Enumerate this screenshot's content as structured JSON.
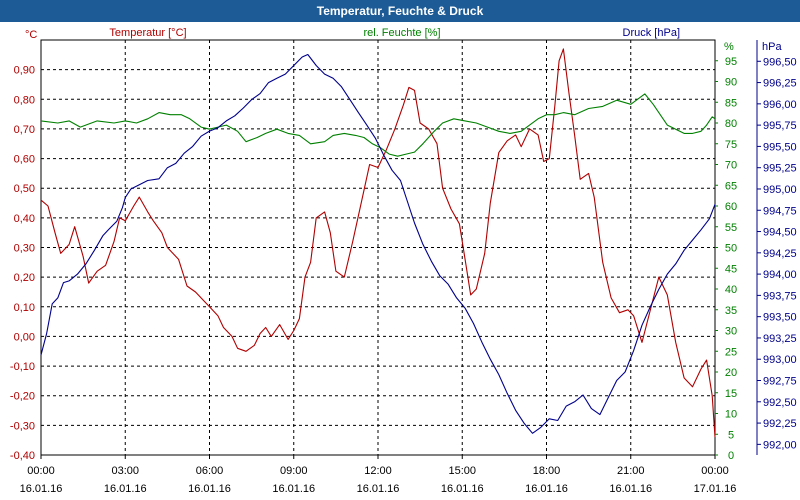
{
  "window": {
    "title": "Temperatur, Feuchte & Druck"
  },
  "chart_data": {
    "type": "line",
    "title": "Temperatur, Feuchte & Druck",
    "x_ticks": [
      {
        "time": "00:00",
        "date": "16.01.16"
      },
      {
        "time": "03:00",
        "date": "16.01.16"
      },
      {
        "time": "06:00",
        "date": "16.01.16"
      },
      {
        "time": "09:00",
        "date": "16.01.16"
      },
      {
        "time": "12:00",
        "date": "16.01.16"
      },
      {
        "time": "15:00",
        "date": "16.01.16"
      },
      {
        "time": "18:00",
        "date": "16.01.16"
      },
      {
        "time": "21:00",
        "date": "16.01.16"
      },
      {
        "time": "00:00",
        "date": "17.01.16"
      }
    ],
    "xlim_hours": [
      0,
      24
    ],
    "axes": {
      "temperature": {
        "unit": "°C",
        "label": "Temperatur [°C]",
        "ylim": [
          -0.4,
          1.0
        ],
        "ticks": [
          "-0,40",
          "-0,30",
          "-0,20",
          "-0,10",
          "0,00",
          "0,10",
          "0,20",
          "0,30",
          "0,40",
          "0,50",
          "0,60",
          "0,70",
          "0,80",
          "0,90"
        ]
      },
      "humidity": {
        "unit": "%",
        "label": "rel. Feuchte [%]",
        "ylim": [
          0,
          100
        ],
        "ticks": [
          "0",
          "5",
          "10",
          "15",
          "20",
          "25",
          "30",
          "35",
          "40",
          "45",
          "50",
          "55",
          "60",
          "65",
          "70",
          "75",
          "80",
          "85",
          "90",
          "95"
        ]
      },
      "pressure": {
        "unit": "hPa",
        "label": "Druck [hPa]",
        "ylim": [
          991.875,
          996.75
        ],
        "ticks": [
          "992,00",
          "992,25",
          "992,50",
          "992,75",
          "993,00",
          "993,25",
          "993,50",
          "993,75",
          "994,00",
          "994,25",
          "994,50",
          "994,75",
          "995,00",
          "995,25",
          "995,50",
          "995,75",
          "996,00",
          "996,25",
          "996,50"
        ]
      }
    },
    "series": [
      {
        "name": "Temperatur [°C]",
        "axis": "temperature",
        "color": "#b00000",
        "points": [
          [
            0,
            0.46
          ],
          [
            0.25,
            0.44
          ],
          [
            0.5,
            0.35
          ],
          [
            0.7,
            0.28
          ],
          [
            1.0,
            0.31
          ],
          [
            1.2,
            0.37
          ],
          [
            1.5,
            0.27
          ],
          [
            1.7,
            0.18
          ],
          [
            2.0,
            0.22
          ],
          [
            2.3,
            0.24
          ],
          [
            2.6,
            0.32
          ],
          [
            2.8,
            0.4
          ],
          [
            3.0,
            0.39
          ],
          [
            3.3,
            0.44
          ],
          [
            3.5,
            0.47
          ],
          [
            3.8,
            0.42
          ],
          [
            4.0,
            0.39
          ],
          [
            4.3,
            0.35
          ],
          [
            4.5,
            0.3
          ],
          [
            4.9,
            0.26
          ],
          [
            5.2,
            0.17
          ],
          [
            5.5,
            0.15
          ],
          [
            6.0,
            0.1
          ],
          [
            6.3,
            0.07
          ],
          [
            6.5,
            0.03
          ],
          [
            6.8,
            0.0
          ],
          [
            7.0,
            -0.04
          ],
          [
            7.3,
            -0.05
          ],
          [
            7.6,
            -0.03
          ],
          [
            7.8,
            0.01
          ],
          [
            8.0,
            0.03
          ],
          [
            8.2,
            0.0
          ],
          [
            8.5,
            0.04
          ],
          [
            8.8,
            -0.01
          ],
          [
            9.0,
            0.02
          ],
          [
            9.2,
            0.06
          ],
          [
            9.4,
            0.2
          ],
          [
            9.6,
            0.25
          ],
          [
            9.8,
            0.4
          ],
          [
            10.1,
            0.42
          ],
          [
            10.3,
            0.35
          ],
          [
            10.5,
            0.22
          ],
          [
            10.8,
            0.2
          ],
          [
            11.1,
            0.32
          ],
          [
            11.4,
            0.45
          ],
          [
            11.7,
            0.58
          ],
          [
            12.0,
            0.57
          ],
          [
            12.3,
            0.63
          ],
          [
            12.6,
            0.7
          ],
          [
            12.9,
            0.78
          ],
          [
            13.1,
            0.84
          ],
          [
            13.3,
            0.83
          ],
          [
            13.5,
            0.72
          ],
          [
            13.8,
            0.7
          ],
          [
            14.1,
            0.65
          ],
          [
            14.3,
            0.5
          ],
          [
            14.6,
            0.43
          ],
          [
            14.9,
            0.38
          ],
          [
            15.1,
            0.26
          ],
          [
            15.3,
            0.14
          ],
          [
            15.5,
            0.16
          ],
          [
            15.8,
            0.28
          ],
          [
            16.0,
            0.45
          ],
          [
            16.3,
            0.62
          ],
          [
            16.6,
            0.66
          ],
          [
            16.9,
            0.68
          ],
          [
            17.1,
            0.64
          ],
          [
            17.4,
            0.7
          ],
          [
            17.7,
            0.68
          ],
          [
            17.9,
            0.59
          ],
          [
            18.1,
            0.6
          ],
          [
            18.3,
            0.78
          ],
          [
            18.45,
            0.93
          ],
          [
            18.6,
            0.97
          ],
          [
            18.8,
            0.82
          ],
          [
            19.0,
            0.68
          ],
          [
            19.2,
            0.53
          ],
          [
            19.5,
            0.55
          ],
          [
            19.7,
            0.47
          ],
          [
            20.0,
            0.25
          ],
          [
            20.3,
            0.13
          ],
          [
            20.6,
            0.08
          ],
          [
            20.9,
            0.09
          ],
          [
            21.1,
            0.07
          ],
          [
            21.4,
            -0.02
          ],
          [
            21.7,
            0.09
          ],
          [
            22.0,
            0.2
          ],
          [
            22.3,
            0.14
          ],
          [
            22.6,
            -0.02
          ],
          [
            22.9,
            -0.14
          ],
          [
            23.2,
            -0.17
          ],
          [
            23.5,
            -0.11
          ],
          [
            23.7,
            -0.08
          ],
          [
            23.9,
            -0.2
          ],
          [
            24.0,
            -0.34
          ]
        ]
      },
      {
        "name": "rel. Feuchte [%]",
        "axis": "humidity",
        "color": "#008000",
        "points": [
          [
            0,
            80.5
          ],
          [
            0.6,
            80.0
          ],
          [
            1.0,
            80.5
          ],
          [
            1.4,
            79.0
          ],
          [
            2.0,
            80.5
          ],
          [
            2.6,
            80.0
          ],
          [
            3.0,
            80.5
          ],
          [
            3.4,
            80.0
          ],
          [
            3.8,
            81.0
          ],
          [
            4.2,
            82.5
          ],
          [
            4.6,
            82.0
          ],
          [
            5.0,
            82.0
          ],
          [
            5.3,
            81.0
          ],
          [
            5.7,
            79.0
          ],
          [
            6.0,
            78.5
          ],
          [
            6.3,
            79.0
          ],
          [
            6.6,
            79.5
          ],
          [
            7.0,
            78.0
          ],
          [
            7.3,
            75.5
          ],
          [
            7.7,
            76.5
          ],
          [
            8.0,
            77.5
          ],
          [
            8.4,
            78.5
          ],
          [
            8.8,
            77.5
          ],
          [
            9.2,
            77.0
          ],
          [
            9.6,
            75.0
          ],
          [
            10.1,
            75.5
          ],
          [
            10.4,
            77.0
          ],
          [
            10.8,
            77.5
          ],
          [
            11.2,
            77.0
          ],
          [
            11.5,
            76.5
          ],
          [
            11.8,
            75.0
          ],
          [
            12.1,
            74.0
          ],
          [
            12.4,
            72.5
          ],
          [
            12.7,
            72.0
          ],
          [
            13.0,
            72.5
          ],
          [
            13.3,
            73.0
          ],
          [
            13.6,
            75.0
          ],
          [
            14.0,
            78.0
          ],
          [
            14.3,
            80.0
          ],
          [
            14.7,
            81.0
          ],
          [
            15.1,
            80.5
          ],
          [
            15.5,
            80.0
          ],
          [
            15.9,
            79.0
          ],
          [
            16.3,
            78.0
          ],
          [
            16.7,
            77.5
          ],
          [
            17.1,
            78.0
          ],
          [
            17.4,
            79.5
          ],
          [
            17.7,
            81.0
          ],
          [
            18.0,
            82.0
          ],
          [
            18.3,
            82.0
          ],
          [
            18.6,
            82.5
          ],
          [
            19.0,
            82.0
          ],
          [
            19.5,
            83.5
          ],
          [
            20.0,
            84.0
          ],
          [
            20.5,
            85.5
          ],
          [
            21.0,
            84.5
          ],
          [
            21.3,
            86.0
          ],
          [
            21.5,
            87.0
          ],
          [
            21.8,
            84.5
          ],
          [
            22.0,
            82.5
          ],
          [
            22.3,
            79.5
          ],
          [
            22.6,
            78.5
          ],
          [
            22.9,
            77.5
          ],
          [
            23.2,
            77.5
          ],
          [
            23.5,
            78.0
          ],
          [
            23.7,
            79.5
          ],
          [
            23.9,
            81.5
          ],
          [
            24.0,
            81.0
          ]
        ]
      },
      {
        "name": "Druck [hPa]",
        "axis": "pressure",
        "color": "#00008b",
        "points": [
          [
            0,
            993.05
          ],
          [
            0.2,
            993.3
          ],
          [
            0.4,
            993.65
          ],
          [
            0.6,
            993.72
          ],
          [
            0.8,
            993.9
          ],
          [
            1.0,
            993.92
          ],
          [
            1.3,
            994.0
          ],
          [
            1.6,
            994.12
          ],
          [
            1.9,
            994.28
          ],
          [
            2.2,
            994.45
          ],
          [
            2.4,
            994.52
          ],
          [
            2.7,
            994.62
          ],
          [
            2.9,
            994.78
          ],
          [
            3.0,
            994.9
          ],
          [
            3.2,
            995.0
          ],
          [
            3.5,
            995.05
          ],
          [
            3.8,
            995.1
          ],
          [
            4.2,
            995.12
          ],
          [
            4.5,
            995.25
          ],
          [
            4.8,
            995.3
          ],
          [
            5.1,
            995.42
          ],
          [
            5.4,
            995.5
          ],
          [
            5.7,
            995.62
          ],
          [
            6.0,
            995.68
          ],
          [
            6.3,
            995.72
          ],
          [
            6.6,
            995.8
          ],
          [
            6.9,
            995.86
          ],
          [
            7.2,
            995.95
          ],
          [
            7.5,
            996.05
          ],
          [
            7.8,
            996.12
          ],
          [
            8.1,
            996.25
          ],
          [
            8.4,
            996.3
          ],
          [
            8.7,
            996.35
          ],
          [
            9.0,
            996.45
          ],
          [
            9.3,
            996.55
          ],
          [
            9.5,
            996.58
          ],
          [
            9.8,
            996.45
          ],
          [
            10.1,
            996.35
          ],
          [
            10.4,
            996.3
          ],
          [
            10.7,
            996.2
          ],
          [
            11.0,
            996.05
          ],
          [
            11.3,
            995.9
          ],
          [
            11.6,
            995.75
          ],
          [
            11.9,
            995.6
          ],
          [
            12.2,
            995.4
          ],
          [
            12.5,
            995.22
          ],
          [
            12.8,
            995.1
          ],
          [
            13.0,
            994.9
          ],
          [
            13.3,
            994.6
          ],
          [
            13.6,
            994.35
          ],
          [
            13.9,
            994.15
          ],
          [
            14.2,
            993.98
          ],
          [
            14.5,
            993.88
          ],
          [
            14.8,
            993.72
          ],
          [
            15.1,
            993.6
          ],
          [
            15.4,
            993.42
          ],
          [
            15.7,
            993.2
          ],
          [
            16.0,
            993.0
          ],
          [
            16.3,
            992.82
          ],
          [
            16.6,
            992.6
          ],
          [
            16.9,
            992.4
          ],
          [
            17.2,
            992.25
          ],
          [
            17.5,
            992.13
          ],
          [
            17.8,
            992.2
          ],
          [
            18.1,
            992.3
          ],
          [
            18.4,
            992.28
          ],
          [
            18.7,
            992.45
          ],
          [
            19.0,
            992.5
          ],
          [
            19.3,
            992.58
          ],
          [
            19.6,
            992.42
          ],
          [
            19.9,
            992.35
          ],
          [
            20.2,
            992.55
          ],
          [
            20.5,
            992.75
          ],
          [
            20.8,
            992.85
          ],
          [
            21.1,
            993.1
          ],
          [
            21.4,
            993.4
          ],
          [
            21.7,
            993.62
          ],
          [
            22.0,
            993.82
          ],
          [
            22.3,
            994.0
          ],
          [
            22.6,
            994.12
          ],
          [
            22.9,
            994.28
          ],
          [
            23.2,
            994.4
          ],
          [
            23.5,
            994.52
          ],
          [
            23.8,
            994.65
          ],
          [
            24.0,
            994.82
          ]
        ]
      }
    ],
    "grid": true,
    "legend": "top"
  }
}
